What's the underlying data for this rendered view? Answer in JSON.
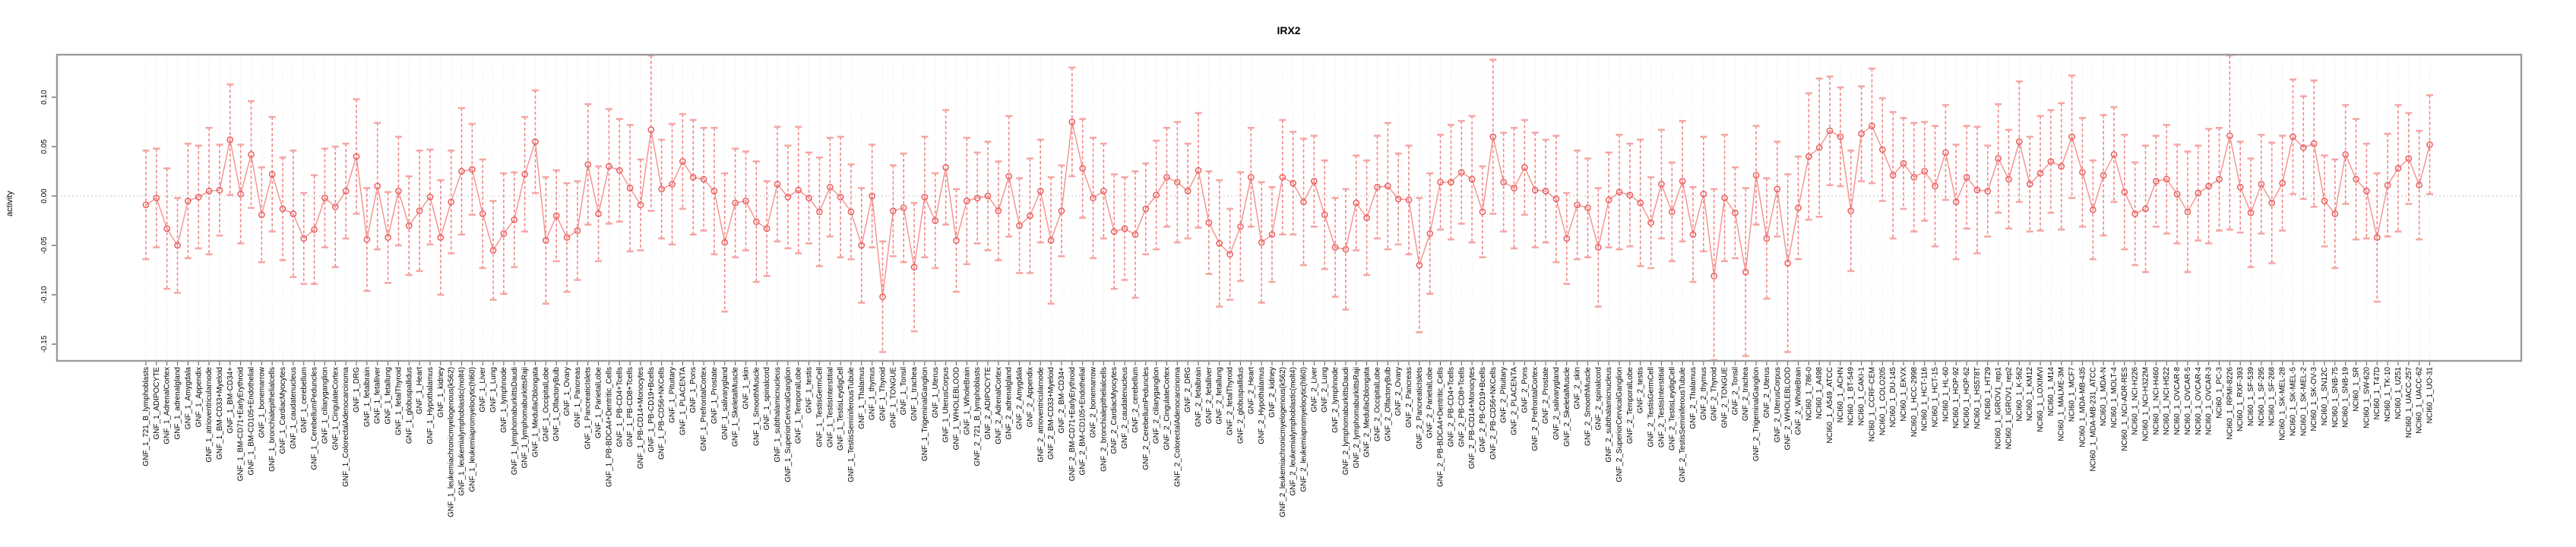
{
  "page": {
    "background": "#ffffff"
  },
  "chart": {
    "title": "IRX2",
    "ylabel": "activity"
  },
  "chart_data": {
    "type": "errorbar",
    "title": "IRX2",
    "xlabel": "",
    "ylabel": "activity",
    "ylim": [
      -0.167,
      0.143
    ],
    "yticks": [
      0.1,
      0.05,
      0.0,
      -0.05,
      -0.1,
      -0.15
    ],
    "ytick_labels": [
      "0.10",
      "0.05",
      "0.00",
      "-0.05",
      "-0.10",
      "-0.15"
    ],
    "grid": "vertical dotted line at every category; horizontal dotted line at zero",
    "legend": "none",
    "style": {
      "series_color": "#F5908D",
      "marker_edge_color": "#E95F5F",
      "errorbar_stem_color": "#ED6B6B",
      "errorbar_cap_color": "#F5A3A0",
      "grid_color": "#DCDCDC",
      "zero_line_color": "#C8C8C8",
      "axis_box_color": "#9B9B9B",
      "tick_color": "#555555",
      "text_color": "#000000"
    },
    "groups": [
      {
        "prefix": "GNF_1_",
        "names": [
          "721_B_lymphoblasts",
          "ADIPOCYTE",
          "AdrenalCortex",
          "adrenalgland",
          "Amygdala",
          "Appendix",
          "atrioventricularnode",
          "BM-CD33+Myeloid",
          "BM-CD34+",
          "BM-CD71+EarlyErythroid",
          "BM-CD105+Endothelial",
          "bonemarrow",
          "bronchialepithelialcells",
          "CardiacMyocytes",
          "caudatenucleus",
          "cerebellum",
          "CerebellumPeduncles",
          "ciliaryganglion",
          "CingulateCortex",
          "ColorectalAdenocarcinoma",
          "DRG",
          "fetalbrain",
          "fetalliver",
          "fetallung",
          "fetalThyroid",
          "globuspallidus",
          "Heart",
          "Hypothalamus",
          "kidney",
          "leukemiachronicmyelogenous(k562)",
          "leukemialymphoblastic(molt4)",
          "leukemiapromyelocytic(hl60)",
          "Liver",
          "Lung",
          "lymphnode",
          "lymphomaburkittsDaudi",
          "lymphomaburkittsRaji",
          "MedullaOblongata",
          "OccipitalLobe",
          "OlfactoryBulb",
          "Ovary",
          "Pancreas",
          "PancreaticIslets",
          "ParietalLobe",
          "PB-BDCA4+Dentritic_Cells",
          "PB-CD4+Tcells",
          "PB-CD8+Tcells",
          "PB-CD14+Monocytes",
          "PB-CD19+Bcells",
          "PB-CD56+NKCells",
          "Pituitary",
          "PLACENTA",
          "Pons",
          "PrefrontalCortex",
          "Prostate",
          "salivarygland",
          "SkeletalMuscle",
          "skin",
          "SmoothMuscle",
          "spinalcord",
          "subthalamicnucleus",
          "SuperiorCervicalGanglion",
          "TemporalLobe",
          "testis",
          "TestisGermCell",
          "TestisInterstitial",
          "TestisLeydigCell",
          "TestisSeminiferousTubule",
          "Thalamus",
          "thymus",
          "Thyroid",
          "TONGUE",
          "Tonsil",
          "trachea",
          "TrigeminalGanglion",
          "Uterus",
          "UterusCorpus",
          "WHOLEBLOOD",
          "WholeBrain"
        ]
      },
      {
        "prefix": "GNF_2_",
        "names": [
          "721_B_lymphoblasts",
          "ADIPOCYTE",
          "AdrenalCortex",
          "adrenalgland",
          "Amygdala",
          "Appendix",
          "atrioventricularnode",
          "BM-CD33+Myeloid",
          "BM-CD34+",
          "BM-CD71+EarlyErythroid",
          "BM-CD105+Endothelial",
          "bonemarrow",
          "bronchialepithelialcells",
          "CardiacMyocytes",
          "caudatenucleus",
          "cerebellum",
          "CerebellumPeduncles",
          "ciliaryganglion",
          "CingulateCortex",
          "ColorectalAdenocarcinoma",
          "DRG",
          "fetalbrain",
          "fetalliver",
          "fetallung",
          "fetalThyroid",
          "globuspallidus",
          "Heart",
          "Hypothalamus",
          "kidney",
          "leukemiachronicmyelogenous(k562)",
          "leukemialymphoblastic(molt4)",
          "leukemiapromyelocytic(hl60)",
          "Liver",
          "Lung",
          "lymphnode",
          "lymphomaburkittsDaudi",
          "lymphomaburkittsRaji",
          "MedullaOblongata",
          "OccipitalLobe",
          "OlfactoryBulb",
          "Ovary",
          "Pancreas",
          "PancreaticIslets",
          "ParietalLobe",
          "PB-BDCA4+Dentritic_Cells",
          "PB-CD4+Tcells",
          "PB-CD8+Tcells",
          "PB-CD14+Monocytes",
          "PB-CD19+Bcells",
          "PB-CD56+NKCells",
          "Pituitary",
          "PLACENTA",
          "Pons",
          "PrefrontalCortex",
          "Prostate",
          "salivarygland",
          "SkeletalMuscle",
          "skin",
          "SmoothMuscle",
          "spinalcord",
          "subthalamicnucleus",
          "SuperiorCervicalGanglion",
          "TemporalLobe",
          "testis",
          "TestisGermCell",
          "TestisInterstitial",
          "TestisLeydigCell",
          "TestisSeminiferousTubule",
          "Thalamus",
          "thymus",
          "Thyroid",
          "TONGUE",
          "Tonsil",
          "trachea",
          "TrigeminalGanglion",
          "Uterus",
          "UterusCorpus",
          "WHOLEBLOOD",
          "WholeBrain"
        ]
      },
      {
        "prefix": "NCI60_1_",
        "names": [
          "786-0",
          "A498",
          "A549_ATCC",
          "ACHN",
          "BT-549",
          "CAKI-1",
          "CCRF-CEM",
          "COLO205",
          "DU-145",
          "EKVX",
          "HCC-2998",
          "HCT-116",
          "HCT-15",
          "HL-60",
          "HOP-92",
          "HOP-62",
          "HS578T",
          "HT29",
          "IGROV1_rep1",
          "IGROV1_rep2",
          "K-562",
          "KM12",
          "LOXIMVI",
          "M14",
          "MALME-3M",
          "MCF7",
          "MDA-MB-435",
          "MDA-MB-231_ATCC",
          "MDA-N",
          "MOLT-4",
          "NCI-ADR-RES",
          "NCI-H226",
          "NCI-H322M",
          "NCI-H460",
          "NCI-H522",
          "OVCAR-8",
          "OVCAR-5",
          "OVCAR-4",
          "OVCAR-3",
          "PC-3",
          "RPMI-8226",
          "RXF-393",
          "SF-539",
          "SF-295",
          "SF-268",
          "SK-MEL-28",
          "SK-MEL-5",
          "SK-MEL-2",
          "SK-OV-3",
          "SN12C",
          "SNB-75",
          "SNB-19",
          "SR",
          "SW-620",
          "T47D",
          "TK-10",
          "U251",
          "UACC-257",
          "UACC-62",
          "UO-31"
        ]
      }
    ],
    "values": [
      -0.009,
      -0.002,
      -0.033,
      -0.05,
      -0.005,
      -0.001,
      0.005,
      0.006,
      0.057,
      0.002,
      0.042,
      -0.019,
      0.022,
      -0.013,
      -0.018,
      -0.043,
      -0.034,
      -0.002,
      -0.011,
      0.005,
      0.04,
      -0.044,
      0.01,
      -0.042,
      0.005,
      -0.03,
      -0.015,
      -0.001,
      -0.042,
      -0.006,
      0.025,
      0.027,
      -0.018,
      -0.055,
      -0.038,
      -0.024,
      0.022,
      0.055,
      -0.045,
      -0.02,
      -0.042,
      -0.035,
      0.032,
      -0.018,
      0.03,
      0.026,
      0.008,
      -0.009,
      0.067,
      0.007,
      0.012,
      0.035,
      0.019,
      0.017,
      0.005,
      -0.047,
      -0.007,
      -0.005,
      -0.026,
      -0.033,
      0.012,
      -0.001,
      0.006,
      -0.002,
      -0.016,
      0.009,
      -0.001,
      -0.016,
      -0.05,
      0.0,
      -0.102,
      -0.015,
      -0.012,
      -0.072,
      -0.001,
      -0.025,
      0.029,
      -0.045,
      -0.005,
      -0.002,
      0.0,
      -0.015,
      0.02,
      -0.03,
      -0.02,
      0.005,
      -0.045,
      -0.015,
      0.075,
      0.028,
      -0.002,
      0.005,
      -0.036,
      -0.033,
      -0.039,
      -0.013,
      0.001,
      0.019,
      0.014,
      0.005,
      0.026,
      -0.027,
      -0.048,
      -0.059,
      -0.031,
      0.019,
      -0.047,
      -0.039,
      0.019,
      0.013,
      -0.006,
      0.015,
      -0.019,
      -0.052,
      -0.054,
      -0.007,
      -0.022,
      0.009,
      0.01,
      -0.003,
      -0.004,
      -0.07,
      -0.038,
      0.014,
      0.014,
      0.024,
      0.017,
      -0.016,
      0.06,
      0.014,
      0.008,
      0.029,
      0.006,
      0.005,
      -0.003,
      -0.043,
      -0.009,
      -0.012,
      -0.052,
      -0.004,
      0.004,
      0.001,
      -0.007,
      -0.027,
      0.012,
      -0.016,
      0.015,
      -0.039,
      0.002,
      -0.081,
      -0.002,
      -0.017,
      -0.077,
      0.021,
      -0.043,
      0.007,
      -0.068,
      -0.012,
      0.04,
      0.049,
      0.066,
      0.06,
      -0.015,
      0.063,
      0.071,
      0.047,
      0.021,
      0.033,
      0.019,
      0.025,
      0.01,
      0.044,
      -0.006,
      0.019,
      0.006,
      0.005,
      0.038,
      0.017,
      0.055,
      0.012,
      0.023,
      0.035,
      0.03,
      0.06,
      0.024,
      -0.014,
      0.021,
      0.042,
      0.004,
      -0.018,
      -0.013,
      0.015,
      0.017,
      0.002,
      -0.016,
      0.003,
      0.01,
      0.017,
      0.061,
      0.009,
      -0.017,
      0.012,
      -0.007,
      0.013,
      0.06,
      0.049,
      0.053,
      -0.005,
      -0.018,
      0.042,
      0.017,
      0.005,
      -0.042,
      0.011,
      0.028,
      0.038,
      0.011,
      0.052
    ],
    "err_default_cycle": [
      0.055,
      0.05,
      0.061,
      0.048,
      0.058,
      0.052,
      0.064,
      0.046
    ],
    "err_overrides": {
      "8": 0.056,
      "10": 0.054,
      "48": 0.082,
      "55": 0.07,
      "70": 0.056,
      "73": 0.065,
      "121": 0.068,
      "128": 0.078,
      "138": 0.06,
      "149": 0.088,
      "152": 0.085,
      "156": 0.09,
      "159": 0.07,
      "183": 0.062,
      "198": 0.095,
      "212": 0.065
    }
  }
}
